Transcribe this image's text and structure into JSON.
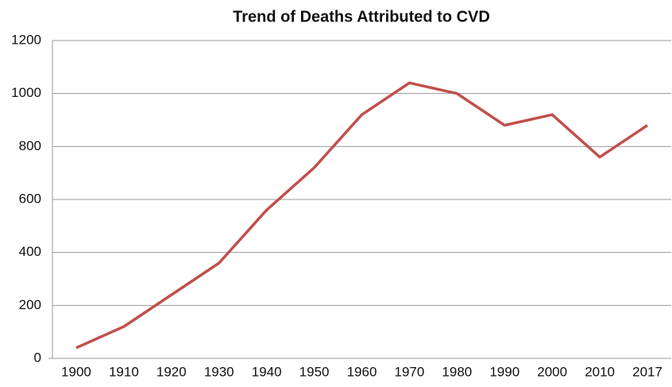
{
  "chart_data": {
    "type": "line",
    "title": "Trend of Deaths Attributed to CVD",
    "categories": [
      "1900",
      "1910",
      "1920",
      "1930",
      "1940",
      "1950",
      "1960",
      "1970",
      "1980",
      "1990",
      "2000",
      "2010",
      "2017"
    ],
    "values": [
      40,
      120,
      240,
      360,
      560,
      720,
      920,
      1040,
      1000,
      880,
      920,
      760,
      880
    ],
    "color": "#c0504d",
    "ylim": [
      0,
      1200
    ],
    "yticks": [
      0,
      200,
      400,
      600,
      800,
      1000,
      1200
    ],
    "grid": true
  }
}
